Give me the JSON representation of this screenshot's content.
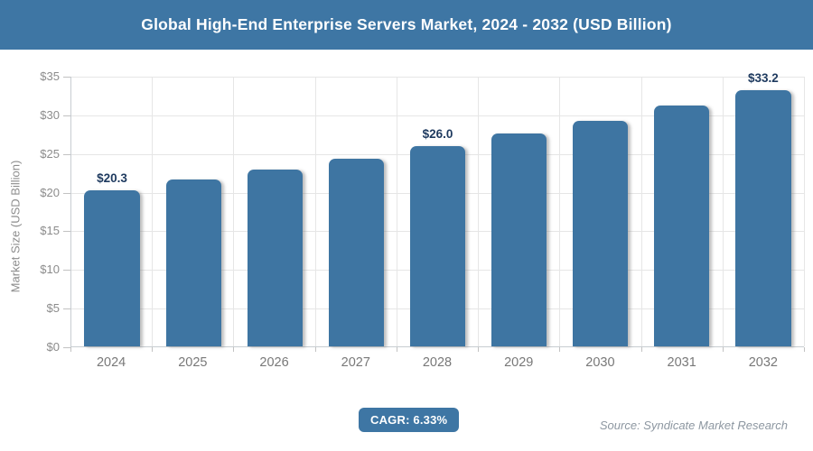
{
  "header": {
    "title": "Global High-End Enterprise Servers Market, 2024 - 2032 (USD Billion)"
  },
  "chart_data": {
    "type": "bar",
    "title": "Global High-End Enterprise Servers Market, 2024 - 2032 (USD Billion)",
    "categories": [
      "2024",
      "2025",
      "2026",
      "2027",
      "2028",
      "2029",
      "2030",
      "2031",
      "2032"
    ],
    "values": [
      20.3,
      21.6,
      23.0,
      24.4,
      26.0,
      27.6,
      29.3,
      31.2,
      33.2
    ],
    "bar_labels": [
      "$20.3",
      "",
      "",
      "",
      "$26.0",
      "",
      "",
      "",
      "$33.2"
    ],
    "xlabel": "",
    "ylabel": "Market Size (USD Billion)",
    "ylim": [
      0,
      35
    ],
    "ytick_step": 5,
    "yticks": [
      "$0",
      "$5",
      "$10",
      "$15",
      "$20",
      "$25",
      "$30",
      "$35"
    ],
    "grid": true,
    "legend": "none"
  },
  "footer": {
    "cagr_label": "CAGR: 6.33%",
    "source": "Source: Syndicate Market Research"
  },
  "colors": {
    "header_bg": "#3e76a4",
    "bar_fill": "#3e75a2",
    "bar_label_text": "#1e3a5f",
    "badge_bg": "#3e76a4",
    "axis_text": "#8c8c8c",
    "year_text": "#787878",
    "gridline": "#e6e6e6",
    "source_text": "#8d97a1",
    "title_text": "#ffffff"
  }
}
